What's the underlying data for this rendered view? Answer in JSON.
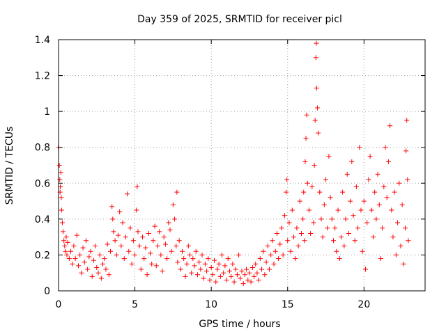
{
  "chart_data": {
    "type": "scatter",
    "title": "Day 359 of 2025, SRMTID for receiver picl",
    "xlabel": "GPS time / hours",
    "ylabel": "SRMTID / TECUs",
    "xlim": [
      0,
      24
    ],
    "ylim": [
      0,
      1.4
    ],
    "xticks": [
      0,
      5,
      10,
      15,
      20
    ],
    "xtick_labels": [
      "0",
      "5",
      "10",
      "15",
      "20"
    ],
    "yticks": [
      0,
      0.2,
      0.4,
      0.6,
      0.8,
      1.0,
      1.2,
      1.4
    ],
    "ytick_labels": [
      "0",
      "0.2",
      "0.4",
      "0.6",
      "0.8",
      "1",
      "1.2",
      "1.4"
    ],
    "grid": true,
    "marker": "plus",
    "color": "#ff0000",
    "series": [
      {
        "name": "SRMTID",
        "points": [
          [
            0.02,
            0.8
          ],
          [
            0.05,
            0.7
          ],
          [
            0.08,
            0.62
          ],
          [
            0.1,
            0.55
          ],
          [
            0.12,
            0.58
          ],
          [
            0.15,
            0.66
          ],
          [
            0.18,
            0.52
          ],
          [
            0.2,
            0.45
          ],
          [
            0.25,
            0.38
          ],
          [
            0.3,
            0.33
          ],
          [
            0.35,
            0.28
          ],
          [
            0.4,
            0.25
          ],
          [
            0.45,
            0.22
          ],
          [
            0.5,
            0.3
          ],
          [
            0.55,
            0.2
          ],
          [
            0.6,
            0.27
          ],
          [
            0.7,
            0.18
          ],
          [
            0.8,
            0.22
          ],
          [
            0.9,
            0.15
          ],
          [
            1.0,
            0.25
          ],
          [
            1.1,
            0.18
          ],
          [
            1.2,
            0.31
          ],
          [
            1.3,
            0.14
          ],
          [
            1.4,
            0.2
          ],
          [
            1.5,
            0.1
          ],
          [
            1.6,
            0.24
          ],
          [
            1.7,
            0.16
          ],
          [
            1.8,
            0.28
          ],
          [
            1.9,
            0.12
          ],
          [
            2.0,
            0.19
          ],
          [
            2.1,
            0.22
          ],
          [
            2.2,
            0.08
          ],
          [
            2.3,
            0.17
          ],
          [
            2.4,
            0.25
          ],
          [
            2.5,
            0.13
          ],
          [
            2.6,
            0.1
          ],
          [
            2.7,
            0.2
          ],
          [
            2.8,
            0.07
          ],
          [
            2.9,
            0.15
          ],
          [
            3.0,
            0.18
          ],
          [
            3.1,
            0.12
          ],
          [
            3.2,
            0.26
          ],
          [
            3.3,
            0.09
          ],
          [
            3.4,
            0.22
          ],
          [
            3.5,
            0.47
          ],
          [
            3.55,
            0.4
          ],
          [
            3.6,
            0.33
          ],
          [
            3.7,
            0.28
          ],
          [
            3.8,
            0.2
          ],
          [
            3.9,
            0.31
          ],
          [
            4.0,
            0.44
          ],
          [
            4.1,
            0.25
          ],
          [
            4.2,
            0.38
          ],
          [
            4.3,
            0.18
          ],
          [
            4.4,
            0.3
          ],
          [
            4.5,
            0.54
          ],
          [
            4.6,
            0.22
          ],
          [
            4.7,
            0.35
          ],
          [
            4.8,
            0.15
          ],
          [
            4.9,
            0.28
          ],
          [
            5.0,
            0.2
          ],
          [
            5.1,
            0.45
          ],
          [
            5.15,
            0.58
          ],
          [
            5.2,
            0.33
          ],
          [
            5.3,
            0.25
          ],
          [
            5.4,
            0.12
          ],
          [
            5.5,
            0.3
          ],
          [
            5.6,
            0.18
          ],
          [
            5.7,
            0.24
          ],
          [
            5.8,
            0.09
          ],
          [
            5.9,
            0.32
          ],
          [
            6.0,
            0.21
          ],
          [
            6.1,
            0.15
          ],
          [
            6.2,
            0.28
          ],
          [
            6.3,
            0.36
          ],
          [
            6.4,
            0.14
          ],
          [
            6.5,
            0.25
          ],
          [
            6.6,
            0.33
          ],
          [
            6.7,
            0.2
          ],
          [
            6.8,
            0.11
          ],
          [
            6.9,
            0.3
          ],
          [
            7.0,
            0.26
          ],
          [
            7.1,
            0.18
          ],
          [
            7.2,
            0.38
          ],
          [
            7.3,
            0.34
          ],
          [
            7.4,
            0.22
          ],
          [
            7.5,
            0.48
          ],
          [
            7.6,
            0.4
          ],
          [
            7.7,
            0.25
          ],
          [
            7.75,
            0.55
          ],
          [
            7.8,
            0.16
          ],
          [
            7.9,
            0.28
          ],
          [
            8.0,
            0.12
          ],
          [
            8.1,
            0.22
          ],
          [
            8.2,
            0.18
          ],
          [
            8.3,
            0.08
          ],
          [
            8.4,
            0.15
          ],
          [
            8.5,
            0.25
          ],
          [
            8.6,
            0.2
          ],
          [
            8.7,
            0.1
          ],
          [
            8.8,
            0.18
          ],
          [
            8.9,
            0.14
          ],
          [
            9.0,
            0.22
          ],
          [
            9.1,
            0.09
          ],
          [
            9.2,
            0.16
          ],
          [
            9.3,
            0.12
          ],
          [
            9.4,
            0.2
          ],
          [
            9.5,
            0.07
          ],
          [
            9.6,
            0.15
          ],
          [
            9.7,
            0.11
          ],
          [
            9.8,
            0.18
          ],
          [
            9.9,
            0.06
          ],
          [
            10.0,
            0.13
          ],
          [
            10.1,
            0.09
          ],
          [
            10.2,
            0.17
          ],
          [
            10.3,
            0.05
          ],
          [
            10.4,
            0.12
          ],
          [
            10.5,
            0.15
          ],
          [
            10.6,
            0.08
          ],
          [
            10.7,
            0.2
          ],
          [
            10.8,
            0.1
          ],
          [
            10.9,
            0.14
          ],
          [
            11.0,
            0.06
          ],
          [
            11.1,
            0.18
          ],
          [
            11.2,
            0.11
          ],
          [
            11.3,
            0.08
          ],
          [
            11.4,
            0.15
          ],
          [
            11.5,
            0.05
          ],
          [
            11.6,
            0.12
          ],
          [
            11.7,
            0.09
          ],
          [
            11.8,
            0.2
          ],
          [
            11.9,
            0.07
          ],
          [
            12.0,
            0.11
          ],
          [
            12.1,
            0.04
          ],
          [
            12.2,
            0.09
          ],
          [
            12.3,
            0.12
          ],
          [
            12.4,
            0.06
          ],
          [
            12.5,
            0.1
          ],
          [
            12.6,
            0.05
          ],
          [
            12.7,
            0.13
          ],
          [
            12.8,
            0.08
          ],
          [
            12.9,
            0.15
          ],
          [
            13.0,
            0.1
          ],
          [
            13.1,
            0.06
          ],
          [
            13.2,
            0.18
          ],
          [
            13.3,
            0.12
          ],
          [
            13.4,
            0.22
          ],
          [
            13.5,
            0.09
          ],
          [
            13.6,
            0.16
          ],
          [
            13.7,
            0.25
          ],
          [
            13.8,
            0.12
          ],
          [
            13.9,
            0.2
          ],
          [
            14.0,
            0.28
          ],
          [
            14.1,
            0.15
          ],
          [
            14.2,
            0.22
          ],
          [
            14.3,
            0.32
          ],
          [
            14.4,
            0.18
          ],
          [
            14.5,
            0.26
          ],
          [
            14.6,
            0.35
          ],
          [
            14.7,
            0.2
          ],
          [
            14.8,
            0.42
          ],
          [
            14.9,
            0.55
          ],
          [
            14.95,
            0.62
          ],
          [
            15.0,
            0.28
          ],
          [
            15.1,
            0.38
          ],
          [
            15.2,
            0.22
          ],
          [
            15.3,
            0.45
          ],
          [
            15.4,
            0.3
          ],
          [
            15.5,
            0.18
          ],
          [
            15.6,
            0.35
          ],
          [
            15.7,
            0.25
          ],
          [
            15.8,
            0.5
          ],
          [
            15.9,
            0.32
          ],
          [
            16.0,
            0.4
          ],
          [
            16.05,
            0.55
          ],
          [
            16.1,
            0.28
          ],
          [
            16.15,
            0.72
          ],
          [
            16.2,
            0.85
          ],
          [
            16.25,
            0.98
          ],
          [
            16.3,
            0.6
          ],
          [
            16.4,
            0.45
          ],
          [
            16.5,
            0.32
          ],
          [
            16.6,
            0.58
          ],
          [
            16.7,
            0.38
          ],
          [
            16.75,
            0.7
          ],
          [
            16.8,
            0.95
          ],
          [
            16.85,
            1.3
          ],
          [
            16.88,
            1.38
          ],
          [
            16.9,
            1.13
          ],
          [
            16.95,
            1.02
          ],
          [
            17.0,
            0.88
          ],
          [
            17.1,
            0.55
          ],
          [
            17.2,
            0.4
          ],
          [
            17.3,
            0.3
          ],
          [
            17.4,
            0.48
          ],
          [
            17.5,
            0.62
          ],
          [
            17.6,
            0.35
          ],
          [
            17.7,
            0.75
          ],
          [
            17.8,
            0.52
          ],
          [
            17.9,
            0.4
          ],
          [
            18.0,
            0.28
          ],
          [
            18.1,
            0.35
          ],
          [
            18.2,
            0.22
          ],
          [
            18.3,
            0.45
          ],
          [
            18.4,
            0.18
          ],
          [
            18.5,
            0.3
          ],
          [
            18.6,
            0.55
          ],
          [
            18.7,
            0.25
          ],
          [
            18.8,
            0.4
          ],
          [
            18.9,
            0.65
          ],
          [
            19.0,
            0.32
          ],
          [
            19.1,
            0.5
          ],
          [
            19.2,
            0.72
          ],
          [
            19.3,
            0.42
          ],
          [
            19.4,
            0.28
          ],
          [
            19.5,
            0.58
          ],
          [
            19.6,
            0.35
          ],
          [
            19.7,
            0.8
          ],
          [
            19.8,
            0.45
          ],
          [
            19.9,
            0.22
          ],
          [
            20.0,
            0.5
          ],
          [
            20.1,
            0.12
          ],
          [
            20.2,
            0.38
          ],
          [
            20.3,
            0.62
          ],
          [
            20.4,
            0.75
          ],
          [
            20.5,
            0.45
          ],
          [
            20.6,
            0.3
          ],
          [
            20.7,
            0.55
          ],
          [
            20.8,
            0.4
          ],
          [
            20.9,
            0.65
          ],
          [
            21.0,
            0.48
          ],
          [
            21.1,
            0.18
          ],
          [
            21.2,
            0.35
          ],
          [
            21.3,
            0.58
          ],
          [
            21.4,
            0.8
          ],
          [
            21.5,
            0.52
          ],
          [
            21.6,
            0.72
          ],
          [
            21.7,
            0.92
          ],
          [
            21.8,
            0.45
          ],
          [
            21.9,
            0.3
          ],
          [
            22.0,
            0.55
          ],
          [
            22.1,
            0.2
          ],
          [
            22.2,
            0.38
          ],
          [
            22.3,
            0.6
          ],
          [
            22.4,
            0.25
          ],
          [
            22.5,
            0.48
          ],
          [
            22.6,
            0.15
          ],
          [
            22.7,
            0.35
          ],
          [
            22.75,
            0.78
          ],
          [
            22.8,
            0.95
          ],
          [
            22.85,
            0.62
          ],
          [
            22.9,
            0.28
          ]
        ]
      }
    ]
  }
}
